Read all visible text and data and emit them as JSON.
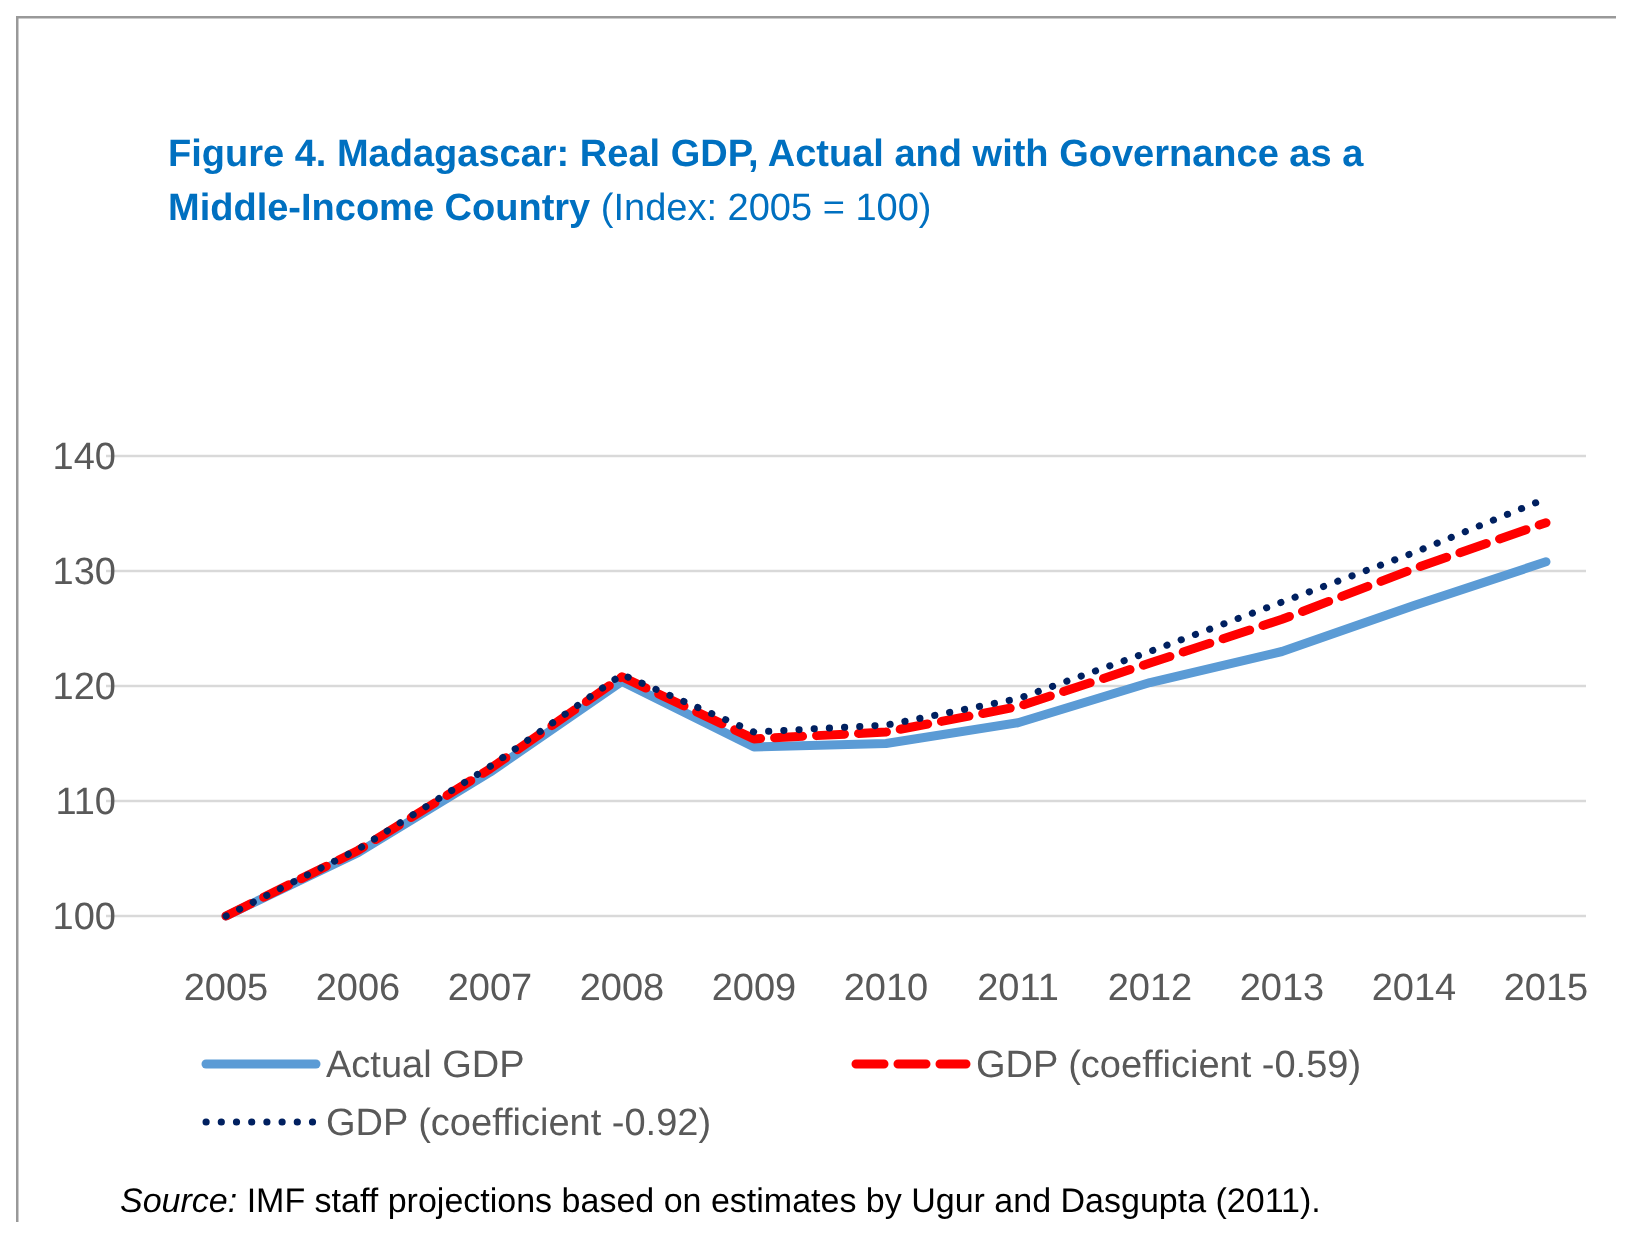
{
  "chart_data": {
    "type": "line",
    "title": "Figure 4. Madagascar: Real GDP, Actual and with Governance as a Middle-Income Country",
    "subtitle": "(Index: 2005 = 100)",
    "categories": [
      "2005",
      "2006",
      "2007",
      "2008",
      "2009",
      "2010",
      "2011",
      "2012",
      "2013",
      "2014",
      "2015"
    ],
    "series": [
      {
        "name": "Actual GDP",
        "color": "#5b9bd5",
        "line_style": "solid",
        "values": [
          100,
          105.5,
          112.5,
          120.4,
          114.7,
          115,
          116.8,
          120.3,
          123,
          127,
          130.8
        ]
      },
      {
        "name": "GDP (coefficient -0.59)",
        "color": "#ff0000",
        "line_style": "dashed",
        "values": [
          100,
          105.7,
          112.8,
          120.8,
          115.4,
          116,
          118.2,
          122,
          125.8,
          130.2,
          134.2
        ]
      },
      {
        "name": "GDP (coefficient -0.92)",
        "color": "#002060",
        "line_style": "dotted",
        "values": [
          100,
          105.8,
          113,
          121,
          116,
          116.6,
          118.9,
          123,
          127.3,
          131.6,
          136.3
        ]
      }
    ],
    "ylim": [
      100,
      140
    ],
    "yticks": [
      100,
      110,
      120,
      130,
      140
    ],
    "grid": "y",
    "legend": "bottom",
    "marker": "none",
    "annotations": [
      "Source: IMF staff projections based on estimates by Ugur and Dasgupta (2011)."
    ]
  }
}
